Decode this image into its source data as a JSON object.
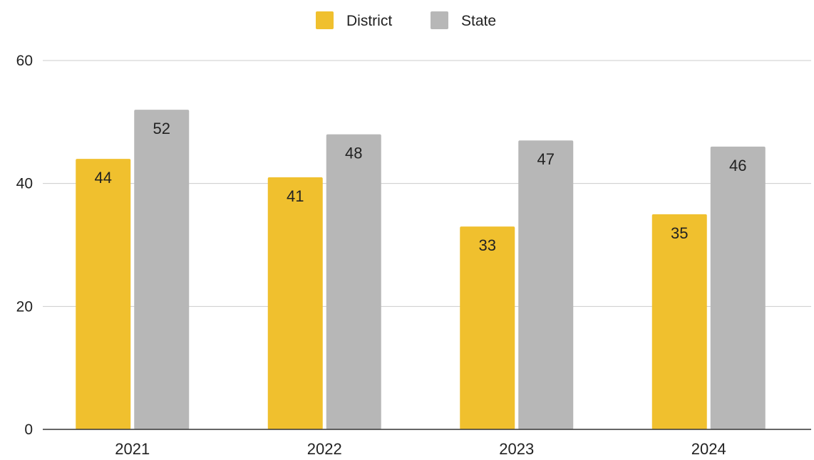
{
  "chart_data": {
    "type": "bar",
    "categories": [
      "2021",
      "2022",
      "2023",
      "2024"
    ],
    "series": [
      {
        "name": "District",
        "values": [
          44,
          41,
          33,
          35
        ],
        "color": "#F0C02E"
      },
      {
        "name": "State",
        "values": [
          52,
          48,
          47,
          46
        ],
        "color": "#B7B7B7"
      }
    ],
    "ylim": [
      0,
      60
    ],
    "yticks": [
      "0",
      "20",
      "40",
      "60"
    ],
    "grid": true,
    "legend_position": "top-center",
    "data_labels": true
  }
}
